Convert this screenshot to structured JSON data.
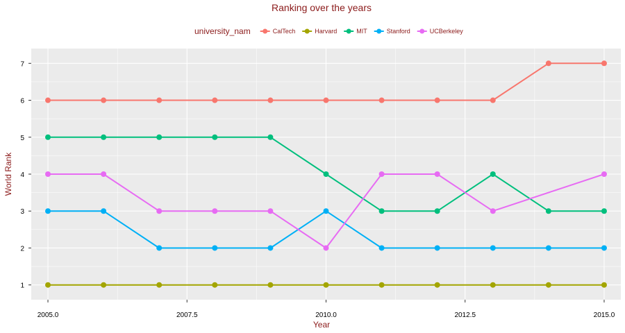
{
  "chart_data": {
    "type": "line",
    "title": "Ranking over the years",
    "xlabel": "Year",
    "ylabel": "World Rank",
    "x": [
      2005,
      2006,
      2007,
      2008,
      2009,
      2010,
      2011,
      2012,
      2013,
      2014,
      2015
    ],
    "xlim": [
      2004.7,
      2015.3
    ],
    "ylim": [
      0.6,
      7.4
    ],
    "x_ticks": [
      2005.0,
      2007.5,
      2010.0,
      2012.5,
      2015.0
    ],
    "x_tick_labels": [
      "2005.0",
      "2007.5",
      "2010.0",
      "2012.5",
      "2015.0"
    ],
    "y_ticks": [
      1,
      2,
      3,
      4,
      5,
      6,
      7
    ],
    "y_tick_labels": [
      "1",
      "2",
      "3",
      "4",
      "5",
      "6",
      "7"
    ],
    "grid": true,
    "legend": {
      "title": "university_nam",
      "position": "top"
    },
    "series": [
      {
        "name": "CalTech",
        "color": "#F8766D",
        "values": [
          6,
          6,
          6,
          6,
          6,
          6,
          6,
          6,
          6,
          7,
          7
        ]
      },
      {
        "name": "Harvard",
        "color": "#A3A500",
        "values": [
          1,
          1,
          1,
          1,
          1,
          1,
          1,
          1,
          1,
          1,
          1
        ]
      },
      {
        "name": "MIT",
        "color": "#00BF7D",
        "values": [
          5,
          5,
          5,
          5,
          5,
          4,
          3,
          3,
          4,
          3,
          3
        ]
      },
      {
        "name": "Stanford",
        "color": "#00B0F6",
        "values": [
          3,
          3,
          2,
          2,
          2,
          3,
          2,
          2,
          2,
          2,
          2
        ]
      },
      {
        "name": "UCBerkeley",
        "color": "#E76BF3",
        "values": [
          4,
          4,
          3,
          3,
          3,
          2,
          4,
          4,
          3,
          null,
          4
        ]
      }
    ],
    "colors": {
      "panel_background": "#EBEBEB",
      "grid_major": "#FFFFFF",
      "text_accent": "#8B1A1A"
    }
  }
}
